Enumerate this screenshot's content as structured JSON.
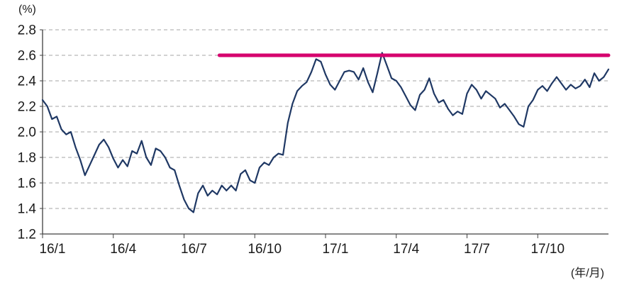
{
  "chart": {
    "y_unit_label": "(%)",
    "x_unit_label": "(年/月)"
  },
  "chart_data": {
    "type": "line",
    "title": "",
    "xlabel": "(年/月)",
    "ylabel": "(%)",
    "x_encoding": "months elapsed since 16/1",
    "xlim": [
      0,
      24
    ],
    "ylim": [
      1.2,
      2.8
    ],
    "grid": "horizontal-dashed",
    "legend": "none",
    "y_ticks": [
      1.2,
      1.4,
      1.6,
      1.8,
      2.0,
      2.2,
      2.4,
      2.6,
      2.8
    ],
    "x_ticks": [
      {
        "pos": 0,
        "label": "16/1"
      },
      {
        "pos": 3,
        "label": "16/4"
      },
      {
        "pos": 6,
        "label": "16/7"
      },
      {
        "pos": 9,
        "label": "16/10"
      },
      {
        "pos": 12,
        "label": "17/1"
      },
      {
        "pos": 15,
        "label": "17/4"
      },
      {
        "pos": 18,
        "label": "17/7"
      },
      {
        "pos": 21,
        "label": "17/10"
      }
    ],
    "colors": {
      "line": "#1f3864",
      "reference": "#d6006e",
      "grid": "#a6a6a6",
      "axis": "#404040",
      "text": "#1a1a1a"
    },
    "values": [
      2.25,
      2.2,
      2.1,
      2.12,
      2.02,
      1.98,
      2.0,
      1.88,
      1.78,
      1.66,
      1.74,
      1.82,
      1.9,
      1.94,
      1.88,
      1.79,
      1.72,
      1.78,
      1.73,
      1.85,
      1.83,
      1.93,
      1.8,
      1.74,
      1.87,
      1.85,
      1.8,
      1.72,
      1.7,
      1.58,
      1.47,
      1.4,
      1.37,
      1.52,
      1.58,
      1.5,
      1.54,
      1.51,
      1.58,
      1.54,
      1.58,
      1.54,
      1.67,
      1.7,
      1.62,
      1.6,
      1.72,
      1.76,
      1.74,
      1.8,
      1.83,
      1.82,
      2.07,
      2.22,
      2.32,
      2.36,
      2.39,
      2.47,
      2.57,
      2.55,
      2.45,
      2.37,
      2.33,
      2.4,
      2.47,
      2.48,
      2.47,
      2.41,
      2.5,
      2.39,
      2.31,
      2.46,
      2.62,
      2.52,
      2.42,
      2.4,
      2.35,
      2.28,
      2.21,
      2.17,
      2.29,
      2.33,
      2.42,
      2.3,
      2.23,
      2.25,
      2.18,
      2.13,
      2.16,
      2.14,
      2.3,
      2.37,
      2.33,
      2.26,
      2.32,
      2.29,
      2.26,
      2.19,
      2.22,
      2.17,
      2.12,
      2.06,
      2.04,
      2.2,
      2.25,
      2.33,
      2.36,
      2.32,
      2.38,
      2.43,
      2.38,
      2.33,
      2.37,
      2.34,
      2.36,
      2.41,
      2.35,
      2.46,
      2.4,
      2.43,
      2.49
    ],
    "reference_line": {
      "value": 2.6,
      "x_start": 7.5,
      "x_end": 24,
      "color": "#d6006e",
      "width": 5
    }
  }
}
